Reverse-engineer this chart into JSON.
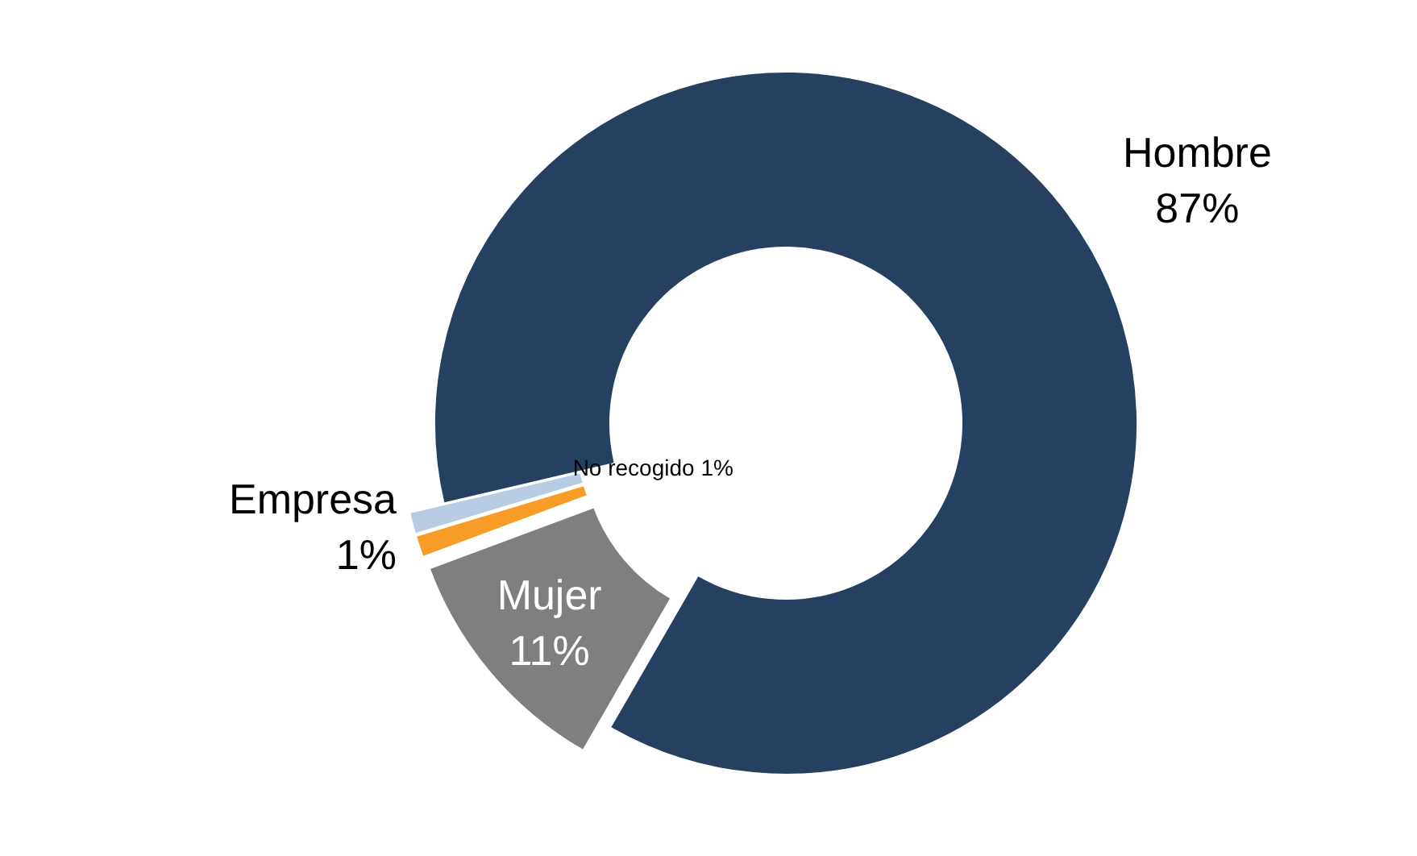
{
  "chart_data": {
    "type": "donut",
    "categories": [
      "Hombre",
      "Mujer",
      "Empresa",
      "No recogido"
    ],
    "values": [
      87,
      11,
      1,
      1
    ],
    "colors": [
      "#264061",
      "#7f7f7f",
      "#f79c26",
      "#b8cce4"
    ],
    "value_labels": [
      "87%",
      "11%",
      "1%",
      "1%"
    ]
  }
}
